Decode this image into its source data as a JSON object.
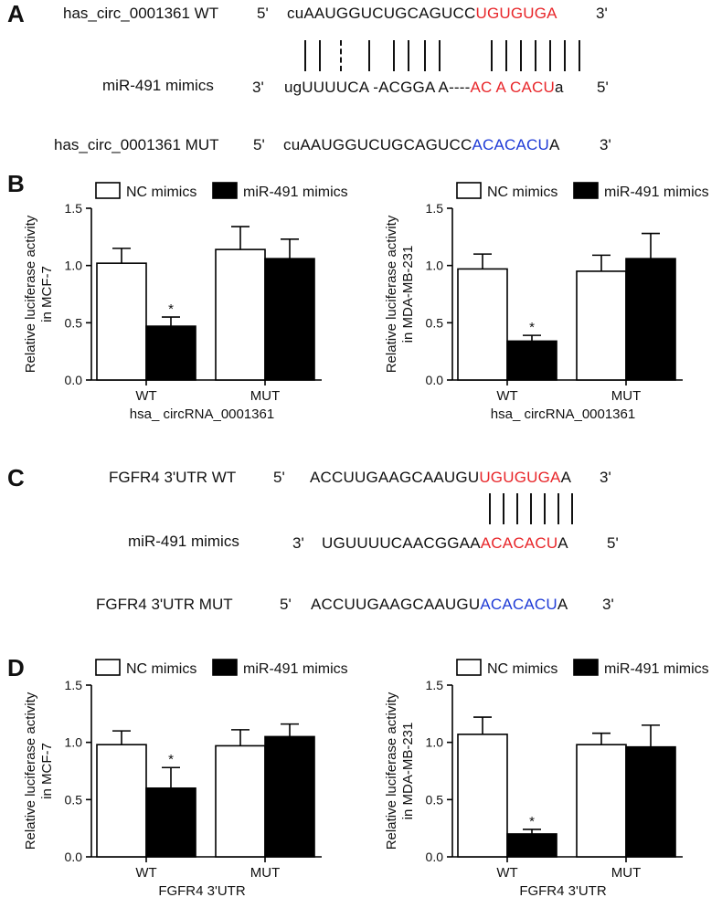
{
  "panel_letters": {
    "a": "A",
    "b": "B",
    "c": "C",
    "d": "D"
  },
  "panel_a": {
    "wt_label": "has_circ_0001361 WT",
    "wt_5": "5'",
    "wt_seq_black": "cuAAUGGUCUGCAGUCC",
    "wt_seq_red": "UGUGUGA",
    "wt_3": "3'",
    "mir_label": "miR-491 mimics",
    "mir_3": "3'",
    "mir_seq_black": "ugUUUUCA -ACGGA A----",
    "mir_seq_red": "AC A CACU",
    "mir_seq_tail": "a",
    "mir_5": "5'",
    "mut_label": "has_circ_0001361 MUT",
    "mut_5": "5'",
    "mut_seq_black": "cuAAUGGUCUGCAGUCC",
    "mut_seq_blue": "ACACACU",
    "mut_seq_tail": "A",
    "mut_3": "3'"
  },
  "panel_c": {
    "wt_label": "FGFR4 3'UTR WT",
    "wt_5": "5'",
    "wt_seq_black": "ACCUUGAAGCAAUGU",
    "wt_seq_red": "UGUGUGA",
    "wt_seq_tail": "A",
    "wt_3": "3'",
    "mir_label": "miR-491 mimics",
    "mir_3": "3'",
    "mir_seq_black": "UGUUUUCAACGGAA",
    "mir_seq_red": "ACACACU",
    "mir_seq_tail": "A",
    "mir_5": "5'",
    "mut_label": "FGFR4 3'UTR MUT",
    "mut_5": "5'",
    "mut_seq_black": "ACCUUGAAGCAAUGU",
    "mut_seq_blue": "ACACACU",
    "mut_seq_tail": "A",
    "mut_3": "3'"
  },
  "chart_data": [
    {
      "id": "B-left",
      "type": "bar",
      "categories": [
        "WT",
        "MUT"
      ],
      "xlabel": "hsa_ circRNA_0001361",
      "ylabel": "Relative luciferase activity in MCF-7",
      "ylim": [
        0,
        1.5
      ],
      "yticks": [
        "0.0",
        "0.5",
        "1.0",
        "1.5"
      ],
      "legend": "top",
      "series": [
        {
          "name": "NC mimics",
          "fill": "#ffffff",
          "values": [
            1.02,
            1.14
          ],
          "errors": [
            0.13,
            0.2
          ]
        },
        {
          "name": "miR-491 mimics",
          "fill": "#000000",
          "values": [
            0.47,
            1.06
          ],
          "errors": [
            0.08,
            0.17
          ]
        }
      ],
      "annotations": [
        {
          "category": "WT",
          "series": 1,
          "text": "*"
        }
      ]
    },
    {
      "id": "B-right",
      "type": "bar",
      "categories": [
        "WT",
        "MUT"
      ],
      "xlabel": "hsa_ circRNA_0001361",
      "ylabel": "Relative luciferase activity in MDA-MB-231",
      "ylim": [
        0,
        1.5
      ],
      "yticks": [
        "0.0",
        "0.5",
        "1.0",
        "1.5"
      ],
      "legend": "top",
      "series": [
        {
          "name": "NC mimics",
          "fill": "#ffffff",
          "values": [
            0.97,
            0.95
          ],
          "errors": [
            0.13,
            0.14
          ]
        },
        {
          "name": "miR-491 mimics",
          "fill": "#000000",
          "values": [
            0.34,
            1.06
          ],
          "errors": [
            0.05,
            0.22
          ]
        }
      ],
      "annotations": [
        {
          "category": "WT",
          "series": 1,
          "text": "*"
        }
      ]
    },
    {
      "id": "D-left",
      "type": "bar",
      "categories": [
        "WT",
        "MUT"
      ],
      "xlabel": "FGFR4 3'UTR",
      "ylabel": "Relative luciferase activity in MCF-7",
      "ylim": [
        0,
        1.5
      ],
      "yticks": [
        "0.0",
        "0.5",
        "1.0",
        "1.5"
      ],
      "legend": "top",
      "series": [
        {
          "name": "NC mimics",
          "fill": "#ffffff",
          "values": [
            0.98,
            0.97
          ],
          "errors": [
            0.12,
            0.14
          ]
        },
        {
          "name": "miR-491 mimics",
          "fill": "#000000",
          "values": [
            0.6,
            1.05
          ],
          "errors": [
            0.18,
            0.11
          ]
        }
      ],
      "annotations": [
        {
          "category": "WT",
          "series": 1,
          "text": "*"
        }
      ]
    },
    {
      "id": "D-right",
      "type": "bar",
      "categories": [
        "WT",
        "MUT"
      ],
      "xlabel": "FGFR4 3'UTR",
      "ylabel": "Relative luciferase activity in MDA-MB-231",
      "ylim": [
        0,
        1.5
      ],
      "yticks": [
        "0.0",
        "0.5",
        "1.0",
        "1.5"
      ],
      "legend": "top",
      "series": [
        {
          "name": "NC mimics",
          "fill": "#ffffff",
          "values": [
            1.07,
            0.98
          ],
          "errors": [
            0.15,
            0.1
          ]
        },
        {
          "name": "miR-491 mimics",
          "fill": "#000000",
          "values": [
            0.2,
            0.96
          ],
          "errors": [
            0.04,
            0.19
          ]
        }
      ],
      "annotations": [
        {
          "category": "WT",
          "series": 1,
          "text": "*"
        }
      ]
    }
  ]
}
